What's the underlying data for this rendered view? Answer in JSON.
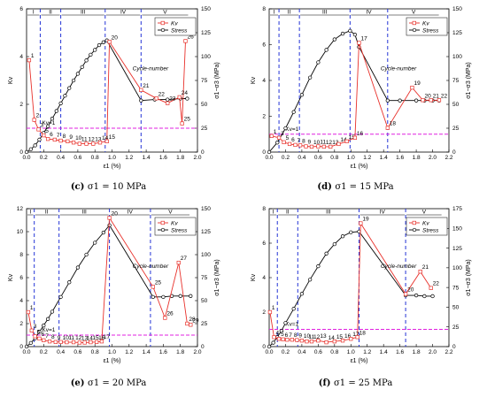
{
  "colors": {
    "kv": "#e8312b",
    "stress": "#000000",
    "stage_line": "#2434d6",
    "threshold": "#e020e0"
  },
  "chart_data": [
    {
      "id": "c",
      "caption": {
        "label": "(c)",
        "text": "σ1 = 10 MPa"
      },
      "type": "line",
      "xlabel": "ε1 (%)",
      "ylabel_left": "Kv",
      "ylabel_right": "σ1−σ3 (MPa)",
      "xlim": [
        0,
        2.0
      ],
      "ylim_left": [
        0,
        6
      ],
      "ylim_right": [
        0,
        150
      ],
      "xticks": [
        "0.0",
        "0.2",
        "0.4",
        "0.6",
        "0.8",
        "1.0",
        "1.2",
        "1.4",
        "1.6",
        "1.8",
        "2.0"
      ],
      "yticks_left": [
        "0",
        "2",
        "4",
        "6"
      ],
      "yticks_right": [
        "0",
        "25",
        "50",
        "75",
        "100",
        "125",
        "150"
      ],
      "stage_lines": [
        0.16,
        0.4,
        0.92,
        1.34
      ],
      "stage_labels": [
        "I",
        "II",
        "III",
        "IV",
        "V"
      ],
      "threshold": {
        "y": 1,
        "label": "Kv=1"
      },
      "legend": {
        "position": "top-right",
        "kv": "Kv",
        "stress": "Stress"
      },
      "cycle_label": "Cycle-number",
      "series": [
        {
          "name": "Kv",
          "x": [
            0.03,
            0.09,
            0.14,
            0.2,
            0.25,
            0.33,
            0.4,
            0.48,
            0.55,
            0.62,
            0.7,
            0.78,
            0.86,
            0.94,
            0.97,
            1.34,
            1.52,
            1.65,
            1.79,
            1.82,
            1.86
          ],
          "y": [
            3.85,
            1.35,
            0.95,
            0.7,
            0.55,
            0.52,
            0.48,
            0.45,
            0.4,
            0.35,
            0.35,
            0.35,
            0.4,
            0.45,
            4.62,
            2.6,
            2.25,
            2.05,
            2.3,
            1.2,
            4.65
          ],
          "labels": [
            "1",
            "2",
            "3",
            "5",
            "6",
            "7",
            "8",
            "9",
            "10",
            "11",
            "12",
            "13",
            "14",
            "15",
            "20",
            "21",
            "22",
            "23",
            "24",
            "25",
            "26"
          ]
        },
        {
          "name": "Stress",
          "x": [
            0,
            0.05,
            0.1,
            0.15,
            0.2,
            0.25,
            0.3,
            0.35,
            0.4,
            0.45,
            0.5,
            0.55,
            0.6,
            0.65,
            0.7,
            0.75,
            0.8,
            0.85,
            0.9,
            0.94,
            1.34,
            1.5,
            1.65,
            1.8,
            1.88
          ],
          "y": [
            0,
            3,
            7,
            13,
            20,
            27,
            35,
            43,
            51,
            59,
            67,
            75,
            82,
            89,
            96,
            102,
            107,
            112,
            115,
            117,
            54,
            55,
            55,
            56,
            56
          ]
        }
      ]
    },
    {
      "id": "d",
      "caption": {
        "label": "(d)",
        "text": "σ1 = 15 MPa"
      },
      "type": "line",
      "xlabel": "ε1 (%)",
      "ylabel_left": "Kv",
      "ylabel_right": "σ1−σ3 (MPa)",
      "xlim": [
        0,
        2.2
      ],
      "ylim_left": [
        0,
        8
      ],
      "ylim_right": [
        0,
        150
      ],
      "xticks": [
        "0.0",
        "0.2",
        "0.4",
        "0.6",
        "0.8",
        "1.0",
        "1.2",
        "1.4",
        "1.6",
        "1.8",
        "2.0",
        "2.2"
      ],
      "yticks_left": [
        "0",
        "2",
        "4",
        "6",
        "8"
      ],
      "yticks_right": [
        "0",
        "25",
        "50",
        "75",
        "100",
        "125",
        "150"
      ],
      "stage_lines": [
        0.12,
        0.37,
        0.99,
        1.45
      ],
      "stage_labels": [
        "I",
        "II",
        "III",
        "IV",
        "V"
      ],
      "threshold": {
        "y": 1,
        "label": "Kv=1"
      },
      "legend": {
        "position": "top-right",
        "kv": "Kv",
        "stress": "Stress"
      },
      "cycle_label": "Cycle-number",
      "series": [
        {
          "name": "Kv",
          "x": [
            0.03,
            0.12,
            0.18,
            0.25,
            0.32,
            0.38,
            0.45,
            0.52,
            0.6,
            0.67,
            0.75,
            0.85,
            0.95,
            1.05,
            1.1,
            1.45,
            1.75,
            1.88,
            1.98,
            2.08
          ],
          "y": [
            0.9,
            0.8,
            0.55,
            0.45,
            0.4,
            0.38,
            0.32,
            0.3,
            0.32,
            0.3,
            0.3,
            0.45,
            0.6,
            0.8,
            6.1,
            1.35,
            3.6,
            2.9,
            2.9,
            2.9
          ],
          "labels": [
            "1",
            "3",
            "5",
            "6",
            "7",
            "8",
            "9",
            "10",
            "11",
            "12",
            "13",
            "14",
            "15",
            "16",
            "17",
            "18",
            "19",
            "20",
            "21",
            "22"
          ]
        },
        {
          "name": "Stress",
          "x": [
            0,
            0.1,
            0.2,
            0.3,
            0.4,
            0.5,
            0.6,
            0.7,
            0.8,
            0.9,
            0.99,
            1.05,
            1.1,
            1.45,
            1.6,
            1.8,
            1.9,
            2.0,
            2.08
          ],
          "y": [
            0,
            10,
            25,
            42,
            60,
            78,
            94,
            107,
            118,
            124,
            127,
            123,
            110,
            54,
            54,
            54,
            54,
            54,
            54
          ]
        }
      ]
    },
    {
      "id": "e",
      "caption": {
        "label": "(e)",
        "text": "σ1 = 20 MPa"
      },
      "type": "line",
      "xlabel": "ε1 (%)",
      "ylabel_left": "Kv",
      "ylabel_right": "σ1−σ3 (MPa)",
      "xlim": [
        0,
        2.0
      ],
      "ylim_left": [
        0,
        12
      ],
      "ylim_right": [
        0,
        150
      ],
      "xticks": [
        "0.0",
        "0.2",
        "0.4",
        "0.6",
        "0.8",
        "1.0",
        "1.2",
        "1.4",
        "1.6",
        "1.8",
        "2.0"
      ],
      "yticks_left": [
        "0",
        "2",
        "4",
        "6",
        "8",
        "10",
        "12"
      ],
      "yticks_right": [
        "0",
        "25",
        "50",
        "75",
        "100",
        "125",
        "150"
      ],
      "stage_lines": [
        0.09,
        0.38,
        0.97,
        1.45
      ],
      "stage_labels": [
        "I",
        "II",
        "III",
        "IV",
        "V"
      ],
      "threshold": {
        "y": 1,
        "label": "Kv=1"
      },
      "legend": {
        "position": "top-right",
        "kv": "Kv",
        "stress": "Stress"
      },
      "cycle_label": "Cycle-number",
      "series": [
        {
          "name": "Kv",
          "x": [
            0.02,
            0.06,
            0.1,
            0.15,
            0.2,
            0.27,
            0.34,
            0.4,
            0.47,
            0.55,
            0.62,
            0.68,
            0.75,
            0.82,
            0.88,
            0.97,
            1.48,
            1.62,
            1.78,
            1.88,
            1.92
          ],
          "y": [
            3.0,
            1.4,
            0.9,
            0.7,
            0.55,
            0.45,
            0.4,
            0.4,
            0.38,
            0.38,
            0.35,
            0.35,
            0.38,
            0.4,
            0.45,
            11.2,
            5.2,
            2.5,
            7.3,
            2.0,
            1.9
          ],
          "labels": [
            "1",
            "3",
            "5",
            "6",
            "7",
            "8",
            "9",
            "10",
            "11",
            "12",
            "13",
            "14",
            "15",
            "16",
            "17",
            "20",
            "25",
            "26",
            "27",
            "28",
            "29"
          ]
        },
        {
          "name": "Stress",
          "x": [
            0,
            0.05,
            0.1,
            0.15,
            0.2,
            0.25,
            0.3,
            0.4,
            0.5,
            0.6,
            0.7,
            0.8,
            0.9,
            0.97,
            1.48,
            1.6,
            1.7,
            1.8,
            1.92
          ],
          "y": [
            0,
            4,
            9,
            16,
            23,
            30,
            38,
            54,
            70,
            86,
            100,
            113,
            124,
            132,
            54,
            54,
            55,
            55,
            55
          ]
        }
      ]
    },
    {
      "id": "f",
      "caption": {
        "label": "(f)",
        "text": "σ1 = 25 MPa"
      },
      "type": "line",
      "xlabel": "ε1 (%)",
      "ylabel_left": "Kv",
      "ylabel_right": "σ1−σ3 (MPa)",
      "xlim": [
        0,
        2.2
      ],
      "ylim_left": [
        0,
        8
      ],
      "ylim_right": [
        0,
        175
      ],
      "xticks": [
        "0.0",
        "0.2",
        "0.4",
        "0.6",
        "0.8",
        "1.0",
        "1.2",
        "1.4",
        "1.6",
        "1.8",
        "2.0",
        "2.2"
      ],
      "yticks_left": [
        "0",
        "2",
        "4",
        "6",
        "8"
      ],
      "yticks_right": [
        "0",
        "25",
        "50",
        "75",
        "100",
        "125",
        "150",
        "175"
      ],
      "stage_lines": [
        0.1,
        0.35,
        1.1,
        1.67
      ],
      "stage_labels": [
        "I",
        "II",
        "III",
        "IV",
        "V"
      ],
      "threshold": {
        "y": 1,
        "label": "Kv=1"
      },
      "legend": {
        "position": "top-right",
        "kv": "Kv",
        "stress": "Stress"
      },
      "cycle_label": "Cycle-number",
      "series": [
        {
          "name": "Kv",
          "x": [
            0.01,
            0.06,
            0.12,
            0.17,
            0.22,
            0.28,
            0.34,
            0.4,
            0.46,
            0.52,
            0.6,
            0.7,
            0.8,
            0.9,
            1.0,
            1.08,
            1.12,
            1.67,
            1.85,
            1.98
          ],
          "y": [
            2.0,
            0.55,
            0.45,
            0.42,
            0.4,
            0.4,
            0.38,
            0.35,
            0.3,
            0.3,
            0.35,
            0.25,
            0.3,
            0.35,
            0.45,
            0.55,
            7.15,
            3.05,
            4.35,
            3.4
          ],
          "labels": [
            "1",
            "4",
            "5",
            "6",
            "7",
            "8",
            "9",
            "10",
            "11",
            "12",
            "13",
            "14",
            "15",
            "16",
            "17",
            "18",
            "19",
            "20",
            "21",
            "22"
          ]
        },
        {
          "name": "Stress",
          "x": [
            0,
            0.05,
            0.1,
            0.15,
            0.2,
            0.3,
            0.4,
            0.5,
            0.6,
            0.7,
            0.8,
            0.9,
            1.0,
            1.1,
            1.67,
            1.8,
            1.9,
            2.0
          ],
          "y": [
            0,
            5,
            12,
            20,
            30,
            48,
            67,
            85,
            102,
            118,
            130,
            140,
            145,
            146,
            65,
            65,
            64,
            64
          ]
        }
      ]
    }
  ]
}
